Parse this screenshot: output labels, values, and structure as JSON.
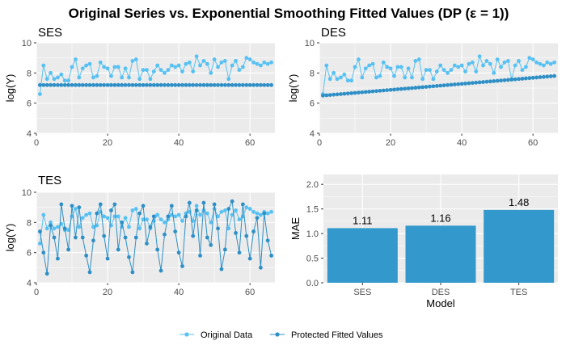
{
  "title": "Original Series vs. Exponential Smoothing Fitted Values (DP (ε = 1))",
  "colors": {
    "original": "#56C1F2",
    "fitted": "#2E8FC6",
    "bar": "#3399CC",
    "panel_bg": "#EBEBEB",
    "grid": "#FFFFFF"
  },
  "legend": {
    "original": "Original Data",
    "fitted": "Protected Fitted Values",
    "position": "bottom"
  },
  "chart_data": [
    {
      "type": "line",
      "title": "SES",
      "xlabel": "",
      "ylabel": "log(Y)",
      "xlim": [
        0,
        67
      ],
      "ylim": [
        4,
        10
      ],
      "xticks": [
        0,
        20,
        40,
        60
      ],
      "yticks": [
        4,
        6,
        8,
        10
      ],
      "grid": true,
      "x_start": 1,
      "series": [
        {
          "name": "Original Data",
          "values": [
            6.6,
            8.5,
            7.6,
            8.0,
            7.6,
            7.7,
            7.9,
            7.5,
            7.5,
            8.4,
            8.9,
            7.7,
            8.3,
            8.5,
            8.6,
            7.7,
            7.8,
            8.7,
            8.4,
            8.3,
            7.8,
            8.4,
            8.4,
            7.7,
            8.3,
            7.7,
            8.8,
            8.9,
            7.6,
            8.2,
            8.2,
            7.6,
            8.1,
            8.5,
            8.2,
            8.0,
            8.2,
            8.5,
            8.4,
            8.5,
            8.1,
            8.6,
            8.7,
            8.1,
            9.1,
            8.5,
            8.8,
            8.6,
            8.0,
            8.9,
            8.4,
            8.7,
            8.8,
            7.6,
            8.5,
            8.8,
            8.2,
            8.4,
            9.0,
            8.9,
            8.7,
            8.6,
            8.5,
            8.7,
            8.6,
            8.7
          ]
        },
        {
          "name": "Protected Fitted Values",
          "values": [
            7.2,
            7.2,
            7.2,
            7.2,
            7.2,
            7.2,
            7.2,
            7.2,
            7.2,
            7.2,
            7.2,
            7.2,
            7.2,
            7.2,
            7.2,
            7.2,
            7.2,
            7.2,
            7.2,
            7.2,
            7.2,
            7.2,
            7.2,
            7.2,
            7.2,
            7.2,
            7.2,
            7.2,
            7.2,
            7.2,
            7.2,
            7.2,
            7.2,
            7.2,
            7.2,
            7.2,
            7.2,
            7.2,
            7.2,
            7.2,
            7.2,
            7.2,
            7.2,
            7.2,
            7.2,
            7.2,
            7.2,
            7.2,
            7.2,
            7.2,
            7.2,
            7.2,
            7.2,
            7.2,
            7.2,
            7.2,
            7.2,
            7.2,
            7.2,
            7.2,
            7.2,
            7.2,
            7.2,
            7.2,
            7.2,
            7.2
          ]
        }
      ]
    },
    {
      "type": "line",
      "title": "DES",
      "xlabel": "",
      "ylabel": "log(Y)",
      "xlim": [
        0,
        67
      ],
      "ylim": [
        4,
        10
      ],
      "xticks": [
        0,
        20,
        40,
        60
      ],
      "yticks": [
        4,
        6,
        8,
        10
      ],
      "grid": true,
      "x_start": 1,
      "series": [
        {
          "name": "Original Data",
          "values": [
            6.6,
            8.5,
            7.6,
            8.0,
            7.6,
            7.7,
            7.9,
            7.5,
            7.5,
            8.4,
            8.9,
            7.7,
            8.3,
            8.5,
            8.6,
            7.7,
            7.8,
            8.7,
            8.4,
            8.3,
            7.8,
            8.4,
            8.4,
            7.7,
            8.3,
            7.7,
            8.8,
            8.9,
            7.6,
            8.2,
            8.2,
            7.6,
            8.1,
            8.5,
            8.2,
            8.0,
            8.2,
            8.5,
            8.4,
            8.5,
            8.1,
            8.6,
            8.7,
            8.1,
            9.1,
            8.5,
            8.8,
            8.6,
            8.0,
            8.9,
            8.4,
            8.7,
            8.8,
            7.6,
            8.5,
            8.8,
            8.2,
            8.4,
            9.0,
            8.9,
            8.7,
            8.6,
            8.5,
            8.7,
            8.6,
            8.7
          ]
        },
        {
          "name": "Protected Fitted Values",
          "values": [
            6.5,
            6.52,
            6.54,
            6.56,
            6.58,
            6.6,
            6.62,
            6.64,
            6.66,
            6.68,
            6.7,
            6.72,
            6.74,
            6.76,
            6.78,
            6.8,
            6.82,
            6.84,
            6.86,
            6.88,
            6.9,
            6.92,
            6.94,
            6.96,
            6.98,
            7.0,
            7.02,
            7.04,
            7.06,
            7.08,
            7.1,
            7.12,
            7.14,
            7.16,
            7.18,
            7.2,
            7.22,
            7.24,
            7.26,
            7.28,
            7.3,
            7.32,
            7.34,
            7.36,
            7.38,
            7.4,
            7.42,
            7.44,
            7.46,
            7.48,
            7.5,
            7.52,
            7.54,
            7.56,
            7.58,
            7.6,
            7.62,
            7.64,
            7.66,
            7.68,
            7.7,
            7.72,
            7.74,
            7.76,
            7.78,
            7.8
          ]
        }
      ]
    },
    {
      "type": "line",
      "title": "TES",
      "xlabel": "",
      "ylabel": "log(Y)",
      "xlim": [
        0,
        67
      ],
      "ylim": [
        4,
        10
      ],
      "xticks": [
        0,
        20,
        40,
        60
      ],
      "yticks": [
        4,
        6,
        8,
        10
      ],
      "grid": true,
      "x_start": 1,
      "series": [
        {
          "name": "Original Data",
          "values": [
            6.6,
            8.5,
            7.6,
            8.0,
            7.6,
            7.7,
            7.9,
            7.5,
            7.5,
            8.4,
            8.9,
            7.7,
            8.3,
            8.5,
            8.6,
            7.7,
            7.8,
            8.7,
            8.4,
            8.3,
            7.8,
            8.4,
            8.4,
            7.7,
            8.3,
            7.7,
            8.8,
            8.9,
            7.6,
            8.2,
            8.2,
            7.6,
            8.1,
            8.5,
            8.2,
            8.0,
            8.2,
            8.5,
            8.4,
            8.5,
            8.1,
            8.6,
            8.7,
            8.1,
            9.1,
            8.5,
            8.8,
            8.6,
            8.0,
            8.9,
            8.4,
            8.7,
            8.8,
            7.6,
            8.5,
            8.8,
            8.2,
            8.4,
            9.0,
            8.9,
            8.7,
            8.6,
            8.5,
            8.7,
            8.6,
            8.7
          ]
        },
        {
          "name": "Protected Fitted Values",
          "values": [
            7.4,
            6.0,
            4.6,
            7.8,
            7.0,
            5.6,
            9.2,
            7.6,
            6.2,
            9.1,
            7.0,
            9.0,
            7.0,
            5.8,
            4.7,
            6.8,
            8.6,
            9.2,
            7.1,
            5.6,
            8.8,
            9.2,
            6.2,
            8.0,
            7.0,
            5.7,
            4.7,
            7.0,
            8.6,
            9.1,
            6.6,
            7.7,
            8.4,
            6.2,
            4.8,
            7.2,
            8.4,
            9.1,
            7.4,
            6.0,
            5.1,
            8.4,
            9.3,
            7.1,
            8.8,
            5.8,
            9.3,
            7.0,
            6.5,
            9.2,
            7.6,
            4.9,
            6.2,
            8.9,
            9.4,
            7.3,
            6.0,
            9.2,
            7.1,
            5.6,
            7.4,
            8.3,
            5.0,
            8.6,
            6.8,
            5.8
          ]
        }
      ]
    },
    {
      "type": "bar",
      "title": "",
      "xlabel": "Model",
      "ylabel": "MAE",
      "categories": [
        "SES",
        "DES",
        "TES"
      ],
      "values": [
        1.11,
        1.16,
        1.48
      ],
      "data_labels": [
        "1.11",
        "1.16",
        "1.48"
      ],
      "ylim": [
        0,
        2.2
      ],
      "yticks": [
        "0.0",
        "0.5",
        "1.0",
        "1.5",
        "2.0"
      ],
      "grid": true
    }
  ]
}
